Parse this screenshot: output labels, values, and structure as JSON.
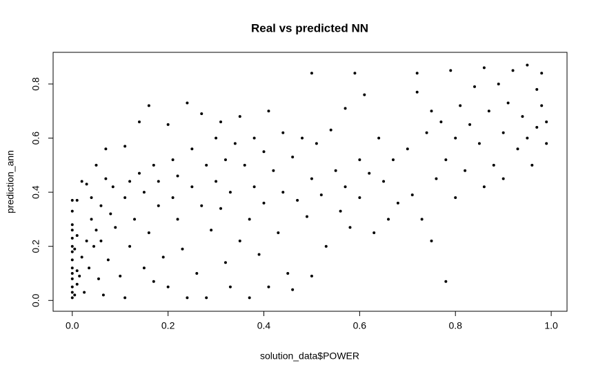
{
  "chart_data": {
    "type": "scatter",
    "title": "Real vs predicted NN",
    "x_label": "solution_data$POWER",
    "y_label": "prediction_ann",
    "color": "#000000",
    "xlim": [
      -0.04,
      1.033
    ],
    "ylim": [
      -0.04,
      0.917
    ],
    "xticks": [
      {
        "value": 0,
        "label": "0.0"
      },
      0.2,
      0.4,
      0.6,
      0.8,
      {
        "value": 1,
        "label": "1.0"
      }
    ],
    "yticks": [
      {
        "value": 0,
        "label": "0.0"
      },
      0.2,
      0.4,
      0.6,
      0.8
    ],
    "x": [
      0,
      0,
      0,
      0,
      0,
      0,
      0,
      0,
      0,
      0,
      0,
      0,
      0,
      0,
      0.005,
      0.005,
      0.01,
      0.01,
      0.01,
      0.01,
      0.015,
      0.02,
      0.02,
      0.025,
      0.03,
      0.03,
      0.035,
      0.04,
      0.04,
      0.045,
      0.05,
      0.05,
      0.055,
      0.06,
      0.06,
      0.065,
      0.07,
      0.07,
      0.075,
      0.08,
      0.085,
      0.09,
      0.1,
      0.11,
      0.11,
      0.11,
      0.12,
      0.12,
      0.13,
      0.14,
      0.14,
      0.15,
      0.15,
      0.16,
      0.16,
      0.17,
      0.17,
      0.18,
      0.18,
      0.19,
      0.2,
      0.2,
      0.21,
      0.21,
      0.22,
      0.22,
      0.23,
      0.24,
      0.24,
      0.25,
      0.25,
      0.26,
      0.27,
      0.27,
      0.28,
      0.28,
      0.29,
      0.3,
      0.3,
      0.31,
      0.31,
      0.32,
      0.32,
      0.33,
      0.33,
      0.34,
      0.35,
      0.35,
      0.36,
      0.37,
      0.37,
      0.38,
      0.38,
      0.39,
      0.4,
      0.4,
      0.41,
      0.41,
      0.42,
      0.43,
      0.44,
      0.44,
      0.45,
      0.46,
      0.46,
      0.47,
      0.48,
      0.49,
      0.5,
      0.5,
      0.5,
      0.51,
      0.52,
      0.53,
      0.54,
      0.55,
      0.56,
      0.57,
      0.57,
      0.58,
      0.59,
      0.6,
      0.6,
      0.61,
      0.62,
      0.63,
      0.64,
      0.65,
      0.66,
      0.67,
      0.68,
      0.7,
      0.71,
      0.72,
      0.72,
      0.73,
      0.74,
      0.75,
      0.75,
      0.76,
      0.77,
      0.78,
      0.78,
      0.79,
      0.8,
      0.8,
      0.81,
      0.82,
      0.83,
      0.84,
      0.85,
      0.86,
      0.86,
      0.87,
      0.88,
      0.89,
      0.9,
      0.9,
      0.91,
      0.92,
      0.93,
      0.94,
      0.95,
      0.95,
      0.96,
      0.97,
      0.97,
      0.98,
      0.99,
      0.99,
      0.98
    ],
    "values": [
      0.01,
      0.03,
      0.05,
      0.08,
      0.1,
      0.12,
      0.15,
      0.18,
      0.2,
      0.23,
      0.26,
      0.28,
      0.33,
      0.37,
      0.02,
      0.19,
      0.06,
      0.11,
      0.24,
      0.37,
      0.09,
      0.44,
      0.16,
      0.03,
      0.22,
      0.43,
      0.12,
      0.3,
      0.38,
      0.2,
      0.26,
      0.5,
      0.08,
      0.35,
      0.22,
      0.02,
      0.56,
      0.45,
      0.15,
      0.32,
      0.42,
      0.27,
      0.09,
      0.57,
      0.01,
      0.38,
      0.44,
      0.2,
      0.3,
      0.66,
      0.47,
      0.4,
      0.12,
      0.72,
      0.25,
      0.5,
      0.07,
      0.44,
      0.35,
      0.16,
      0.65,
      0.05,
      0.52,
      0.38,
      0.3,
      0.46,
      0.19,
      0.73,
      0.01,
      0.56,
      0.42,
      0.1,
      0.35,
      0.69,
      0.5,
      0.01,
      0.26,
      0.6,
      0.44,
      0.66,
      0.34,
      0.52,
      0.14,
      0.05,
      0.4,
      0.58,
      0.22,
      0.68,
      0.5,
      0.01,
      0.3,
      0.6,
      0.42,
      0.17,
      0.55,
      0.36,
      0.7,
      0.05,
      0.48,
      0.25,
      0.62,
      0.4,
      0.1,
      0.53,
      0.04,
      0.37,
      0.6,
      0.31,
      0.84,
      0.09,
      0.45,
      0.58,
      0.39,
      0.2,
      0.63,
      0.48,
      0.33,
      0.71,
      0.42,
      0.27,
      0.84,
      0.52,
      0.38,
      0.76,
      0.47,
      0.25,
      0.6,
      0.44,
      0.3,
      0.52,
      0.36,
      0.56,
      0.39,
      0.77,
      0.84,
      0.3,
      0.62,
      0.22,
      0.7,
      0.45,
      0.66,
      0.07,
      0.52,
      0.85,
      0.6,
      0.38,
      0.72,
      0.48,
      0.65,
      0.79,
      0.58,
      0.86,
      0.42,
      0.7,
      0.5,
      0.8,
      0.62,
      0.45,
      0.73,
      0.85,
      0.56,
      0.68,
      0.87,
      0.6,
      0.5,
      0.78,
      0.64,
      0.72,
      0.58,
      0.66,
      0.84
    ]
  }
}
